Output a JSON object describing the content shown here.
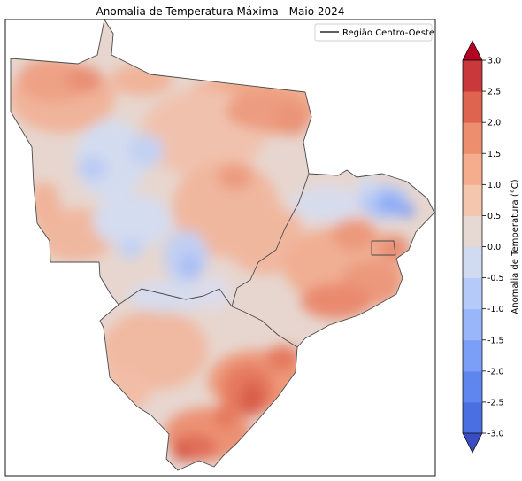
{
  "title": "Anomalia de Temperatura Máxima - Maio 2024",
  "legend": {
    "label": "Região Centro-Oeste",
    "line_color": "#000000"
  },
  "colorbar": {
    "label": "Anomalia de Temperatura (°C)",
    "ticks": [
      "-3.0",
      "-2.5",
      "-2.0",
      "-1.5",
      "-1.0",
      "-0.5",
      "0.0",
      "0.5",
      "1.0",
      "1.5",
      "2.0",
      "2.5",
      "3.0"
    ],
    "colors": [
      "#4a6fe3",
      "#5f86ee",
      "#7b9ff6",
      "#98b6f9",
      "#b5caf8",
      "#d0dbf2",
      "#e6d9d3",
      "#f4c6ad",
      "#f5ad8e",
      "#ed8e6f",
      "#de6450",
      "#c9383a"
    ],
    "extend_low_color": "#3b4cc0",
    "extend_high_color": "#b40426"
  }
}
